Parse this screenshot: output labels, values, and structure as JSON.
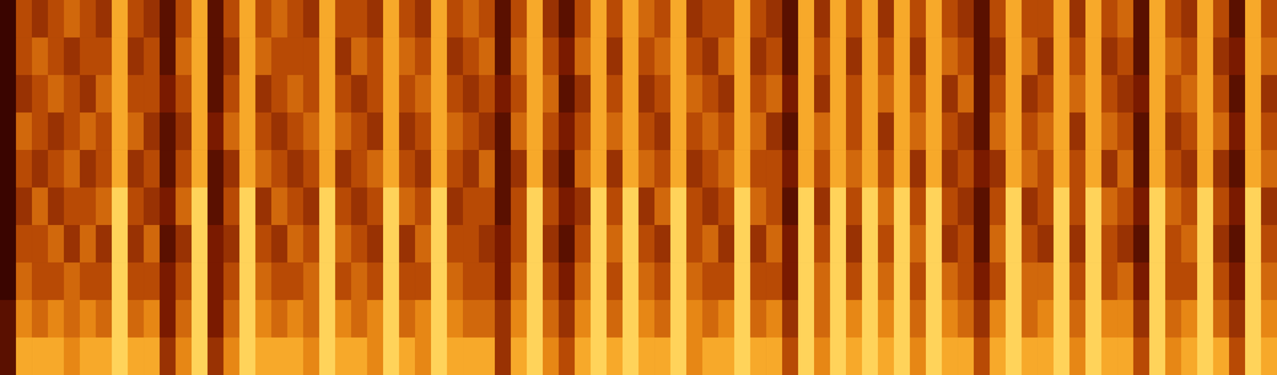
{
  "chart_data": {
    "type": "heatmap",
    "xlim": [
      0,
      80
    ],
    "ylim": [
      0,
      10
    ],
    "tick_labels": false,
    "cells": [
      [
        1,
        5,
        4,
        5,
        6,
        5,
        4,
        8,
        5,
        4,
        2,
        5,
        8,
        2,
        5,
        8,
        5,
        6,
        5,
        4,
        8,
        5,
        5,
        4,
        8,
        5,
        4,
        8,
        5,
        6,
        5,
        2,
        5,
        8,
        4,
        2,
        5,
        8,
        5,
        8,
        6,
        5,
        8,
        4,
        5,
        5,
        8,
        5,
        4,
        2,
        8,
        4,
        8,
        5,
        8,
        4,
        8,
        5,
        8,
        5,
        4,
        2,
        5,
        8,
        5,
        5,
        8,
        4,
        8,
        5,
        6,
        2,
        8,
        5,
        4,
        8,
        5,
        2,
        8,
        5
      ],
      [
        1,
        5,
        6,
        5,
        4,
        5,
        5,
        8,
        4,
        5,
        2,
        6,
        8,
        2,
        4,
        8,
        6,
        5,
        5,
        5,
        8,
        4,
        6,
        5,
        8,
        6,
        5,
        8,
        4,
        5,
        6,
        2,
        6,
        8,
        5,
        3,
        6,
        8,
        4,
        8,
        5,
        6,
        8,
        5,
        4,
        6,
        8,
        4,
        5,
        2,
        8,
        5,
        8,
        4,
        8,
        5,
        8,
        4,
        8,
        6,
        5,
        2,
        4,
        8,
        6,
        4,
        8,
        5,
        8,
        4,
        5,
        2,
        8,
        6,
        5,
        8,
        4,
        3,
        8,
        6
      ],
      [
        1,
        4,
        5,
        6,
        5,
        4,
        6,
        8,
        5,
        5,
        3,
        5,
        8,
        2,
        5,
        8,
        4,
        5,
        6,
        5,
        8,
        5,
        4,
        5,
        8,
        5,
        6,
        8,
        5,
        4,
        5,
        3,
        5,
        8,
        6,
        2,
        4,
        8,
        5,
        8,
        4,
        5,
        8,
        6,
        5,
        4,
        8,
        5,
        6,
        3,
        8,
        4,
        8,
        5,
        8,
        6,
        8,
        5,
        8,
        4,
        6,
        2,
        5,
        8,
        4,
        5,
        8,
        6,
        8,
        5,
        4,
        3,
        8,
        5,
        6,
        8,
        5,
        2,
        8,
        4
      ],
      [
        1,
        6,
        5,
        4,
        5,
        6,
        5,
        8,
        6,
        4,
        2,
        4,
        8,
        3,
        6,
        8,
        5,
        4,
        5,
        6,
        8,
        6,
        5,
        4,
        8,
        4,
        5,
        8,
        6,
        5,
        4,
        2,
        6,
        8,
        5,
        3,
        5,
        8,
        6,
        8,
        5,
        4,
        8,
        5,
        6,
        5,
        8,
        6,
        4,
        2,
        8,
        6,
        8,
        5,
        8,
        4,
        8,
        6,
        8,
        5,
        4,
        2,
        6,
        8,
        5,
        6,
        8,
        4,
        8,
        6,
        5,
        2,
        8,
        4,
        5,
        8,
        6,
        3,
        8,
        5
      ],
      [
        1,
        5,
        4,
        5,
        6,
        4,
        5,
        8,
        4,
        5,
        2,
        5,
        8,
        2,
        4,
        8,
        6,
        5,
        4,
        5,
        8,
        4,
        5,
        6,
        8,
        5,
        4,
        8,
        5,
        4,
        6,
        2,
        4,
        8,
        4,
        2,
        6,
        8,
        4,
        8,
        6,
        5,
        8,
        4,
        5,
        6,
        8,
        5,
        5,
        3,
        8,
        5,
        8,
        6,
        8,
        5,
        8,
        4,
        8,
        4,
        5,
        3,
        4,
        8,
        6,
        5,
        8,
        5,
        8,
        4,
        6,
        2,
        8,
        5,
        4,
        8,
        4,
        2,
        8,
        6
      ],
      [
        1,
        4,
        6,
        4,
        5,
        5,
        6,
        9,
        5,
        4,
        3,
        6,
        9,
        2,
        5,
        9,
        4,
        6,
        5,
        4,
        9,
        5,
        4,
        5,
        9,
        6,
        5,
        9,
        4,
        5,
        5,
        2,
        5,
        9,
        5,
        3,
        4,
        9,
        5,
        9,
        4,
        6,
        9,
        5,
        4,
        5,
        9,
        6,
        5,
        2,
        9,
        4,
        9,
        5,
        9,
        6,
        9,
        5,
        9,
        5,
        4,
        2,
        5,
        9,
        4,
        5,
        9,
        5,
        9,
        6,
        5,
        3,
        9,
        6,
        5,
        9,
        5,
        3,
        9,
        4
      ],
      [
        1,
        5,
        5,
        6,
        4,
        6,
        4,
        9,
        4,
        6,
        2,
        4,
        9,
        3,
        4,
        9,
        5,
        4,
        6,
        5,
        9,
        6,
        5,
        4,
        9,
        4,
        6,
        9,
        5,
        5,
        4,
        3,
        5,
        9,
        4,
        2,
        5,
        9,
        6,
        9,
        5,
        4,
        9,
        5,
        6,
        4,
        9,
        4,
        6,
        3,
        9,
        5,
        9,
        4,
        9,
        5,
        9,
        6,
        9,
        4,
        5,
        2,
        6,
        9,
        5,
        4,
        9,
        4,
        9,
        5,
        4,
        2,
        9,
        5,
        6,
        9,
        4,
        2,
        9,
        5
      ],
      [
        1,
        6,
        5,
        5,
        6,
        5,
        5,
        9,
        5,
        5,
        3,
        5,
        9,
        3,
        5,
        9,
        6,
        5,
        5,
        6,
        9,
        5,
        6,
        5,
        9,
        5,
        5,
        9,
        6,
        5,
        5,
        3,
        6,
        9,
        5,
        3,
        6,
        9,
        5,
        9,
        6,
        5,
        9,
        6,
        5,
        5,
        9,
        5,
        5,
        3,
        9,
        6,
        9,
        5,
        9,
        6,
        9,
        5,
        9,
        6,
        5,
        3,
        5,
        9,
        6,
        6,
        9,
        5,
        9,
        5,
        6,
        3,
        9,
        5,
        5,
        9,
        5,
        3,
        9,
        6
      ],
      [
        2,
        7,
        6,
        7,
        6,
        7,
        6,
        9,
        6,
        7,
        3,
        6,
        9,
        3,
        6,
        9,
        7,
        6,
        7,
        6,
        9,
        7,
        6,
        7,
        9,
        6,
        7,
        9,
        7,
        6,
        6,
        4,
        7,
        9,
        6,
        4,
        7,
        9,
        6,
        9,
        7,
        6,
        9,
        7,
        6,
        7,
        9,
        6,
        7,
        4,
        9,
        6,
        9,
        7,
        9,
        7,
        9,
        6,
        9,
        7,
        6,
        4,
        7,
        9,
        6,
        7,
        9,
        6,
        9,
        7,
        7,
        4,
        9,
        6,
        7,
        9,
        6,
        4,
        9,
        7
      ],
      [
        2,
        8,
        8,
        8,
        7,
        8,
        8,
        9,
        8,
        8,
        4,
        7,
        9,
        4,
        7,
        9,
        8,
        8,
        8,
        7,
        9,
        8,
        8,
        7,
        9,
        8,
        7,
        9,
        8,
        8,
        8,
        4,
        8,
        9,
        7,
        5,
        8,
        9,
        8,
        9,
        8,
        8,
        9,
        7,
        8,
        8,
        9,
        8,
        8,
        5,
        9,
        7,
        9,
        8,
        9,
        8,
        9,
        7,
        9,
        8,
        8,
        5,
        8,
        9,
        8,
        8,
        9,
        7,
        9,
        8,
        8,
        5,
        9,
        7,
        8,
        9,
        8,
        5,
        9,
        8
      ]
    ]
  }
}
